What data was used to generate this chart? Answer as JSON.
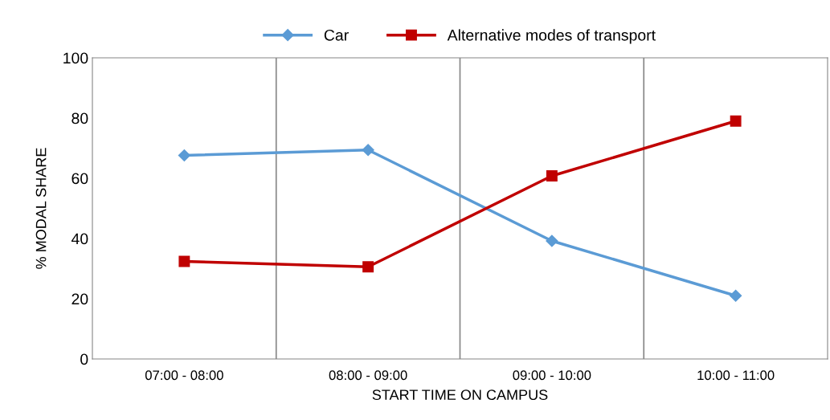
{
  "chart_data": {
    "type": "line",
    "xlabel": "START TIME ON CAMPUS",
    "ylabel": "% MODAL SHARE",
    "categories": [
      "07:00 - 08:00",
      "08:00 - 09:00",
      "09:00 - 10:00",
      "10:00 - 11:00"
    ],
    "series": [
      {
        "name": "Car",
        "color": "#5b9bd5",
        "marker": "diamond",
        "values": [
          67.6,
          69.4,
          39.2,
          21
        ]
      },
      {
        "name": "Alternative modes of transport",
        "color": "#c00000",
        "marker": "square",
        "values": [
          32.4,
          30.6,
          60.8,
          79
        ]
      }
    ],
    "ylim": [
      0,
      100
    ],
    "yticks": [
      0,
      20,
      40,
      60,
      80,
      100
    ],
    "grid": "x",
    "legend": "top",
    "line_style": "solid"
  }
}
